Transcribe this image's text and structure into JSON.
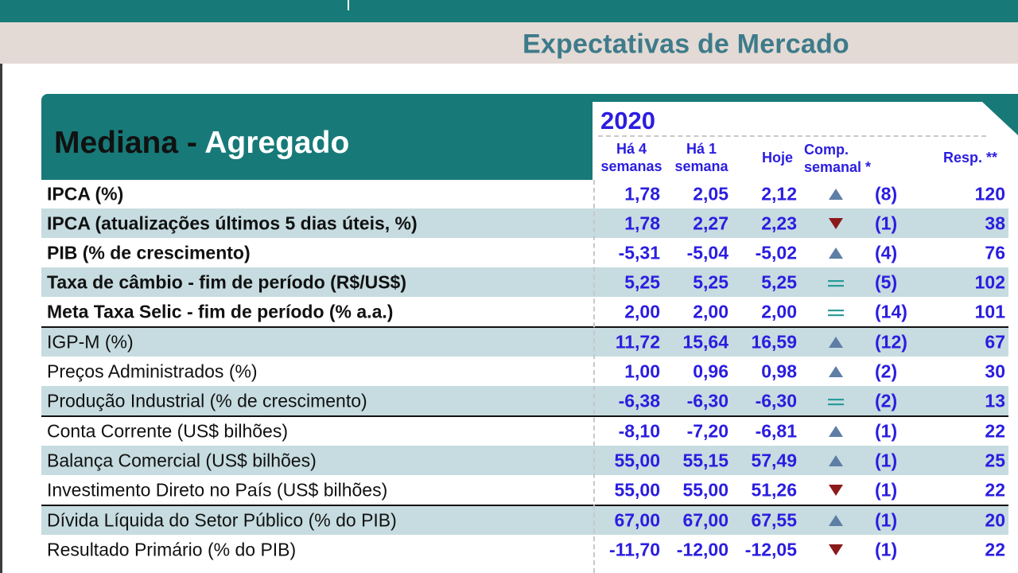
{
  "document": {
    "title": "Expectativas de Mercado"
  },
  "panel": {
    "title_dark": "Mediana - ",
    "title_light": "Agregado",
    "year": "2020",
    "columns": {
      "ha4_l1": "Há 4",
      "ha4_l2": "semanas",
      "ha1_l1": "Há 1",
      "ha1_l2": "semana",
      "hoje": "Hoje",
      "comp_l1": "Comp.",
      "comp_l2": "semanal *",
      "resp": "Resp. **"
    }
  },
  "colors": {
    "teal_header": "#177a78",
    "row_shade": "#c6dce0",
    "value_blue": "#2b1de0",
    "arrow_up": "#5e7ea6",
    "arrow_down": "#8b1a1a",
    "stable": "#2a9c9a"
  },
  "rows": [
    {
      "label": "IPCA (%)",
      "ha4": "1,78",
      "ha1": "2,05",
      "hoje": "2,12",
      "trend": "up-arrow-icon",
      "comp": "(8)",
      "resp": "120"
    },
    {
      "label": "IPCA (atualizações últimos 5 dias úteis, %)",
      "ha4": "1,78",
      "ha1": "2,27",
      "hoje": "2,23",
      "trend": "down-arrow-icon",
      "comp": "(1)",
      "resp": "38"
    },
    {
      "label": "PIB (% de crescimento)",
      "ha4": "-5,31",
      "ha1": "-5,04",
      "hoje": "-5,02",
      "trend": "up-arrow-icon",
      "comp": "(4)",
      "resp": "76"
    },
    {
      "label": "Taxa de câmbio - fim de período (R$/US$)",
      "ha4": "5,25",
      "ha1": "5,25",
      "hoje": "5,25",
      "trend": "equal-icon",
      "comp": "(5)",
      "resp": "102"
    },
    {
      "label": "Meta Taxa Selic - fim de período (% a.a.)",
      "ha4": "2,00",
      "ha1": "2,00",
      "hoje": "2,00",
      "trend": "equal-icon",
      "comp": "(14)",
      "resp": "101"
    },
    {
      "label": "IGP-M (%)",
      "ha4": "11,72",
      "ha1": "15,64",
      "hoje": "16,59",
      "trend": "up-arrow-icon",
      "comp": "(12)",
      "resp": "67"
    },
    {
      "label": "Preços Administrados (%)",
      "ha4": "1,00",
      "ha1": "0,96",
      "hoje": "0,98",
      "trend": "up-arrow-icon",
      "comp": "(2)",
      "resp": "30"
    },
    {
      "label": "Produção Industrial (% de crescimento)",
      "ha4": "-6,38",
      "ha1": "-6,30",
      "hoje": "-6,30",
      "trend": "equal-icon",
      "comp": "(2)",
      "resp": "13"
    },
    {
      "label": "Conta Corrente (US$ bilhões)",
      "ha4": "-8,10",
      "ha1": "-7,20",
      "hoje": "-6,81",
      "trend": "up-arrow-icon",
      "comp": "(1)",
      "resp": "22"
    },
    {
      "label": "Balança Comercial (US$ bilhões)",
      "ha4": "55,00",
      "ha1": "55,15",
      "hoje": "57,49",
      "trend": "up-arrow-icon",
      "comp": "(1)",
      "resp": "25"
    },
    {
      "label": "Investimento Direto no País (US$ bilhões)",
      "ha4": "55,00",
      "ha1": "55,00",
      "hoje": "51,26",
      "trend": "down-arrow-icon",
      "comp": "(1)",
      "resp": "22"
    },
    {
      "label": "Dívida Líquida do Setor Público (% do PIB)",
      "ha4": "67,00",
      "ha1": "67,00",
      "hoje": "67,55",
      "trend": "up-arrow-icon",
      "comp": "(1)",
      "resp": "20"
    },
    {
      "label": "Resultado Primário (% do PIB)",
      "ha4": "-11,70",
      "ha1": "-12,00",
      "hoje": "-12,05",
      "trend": "down-arrow-icon",
      "comp": "(1)",
      "resp": "22"
    }
  ]
}
